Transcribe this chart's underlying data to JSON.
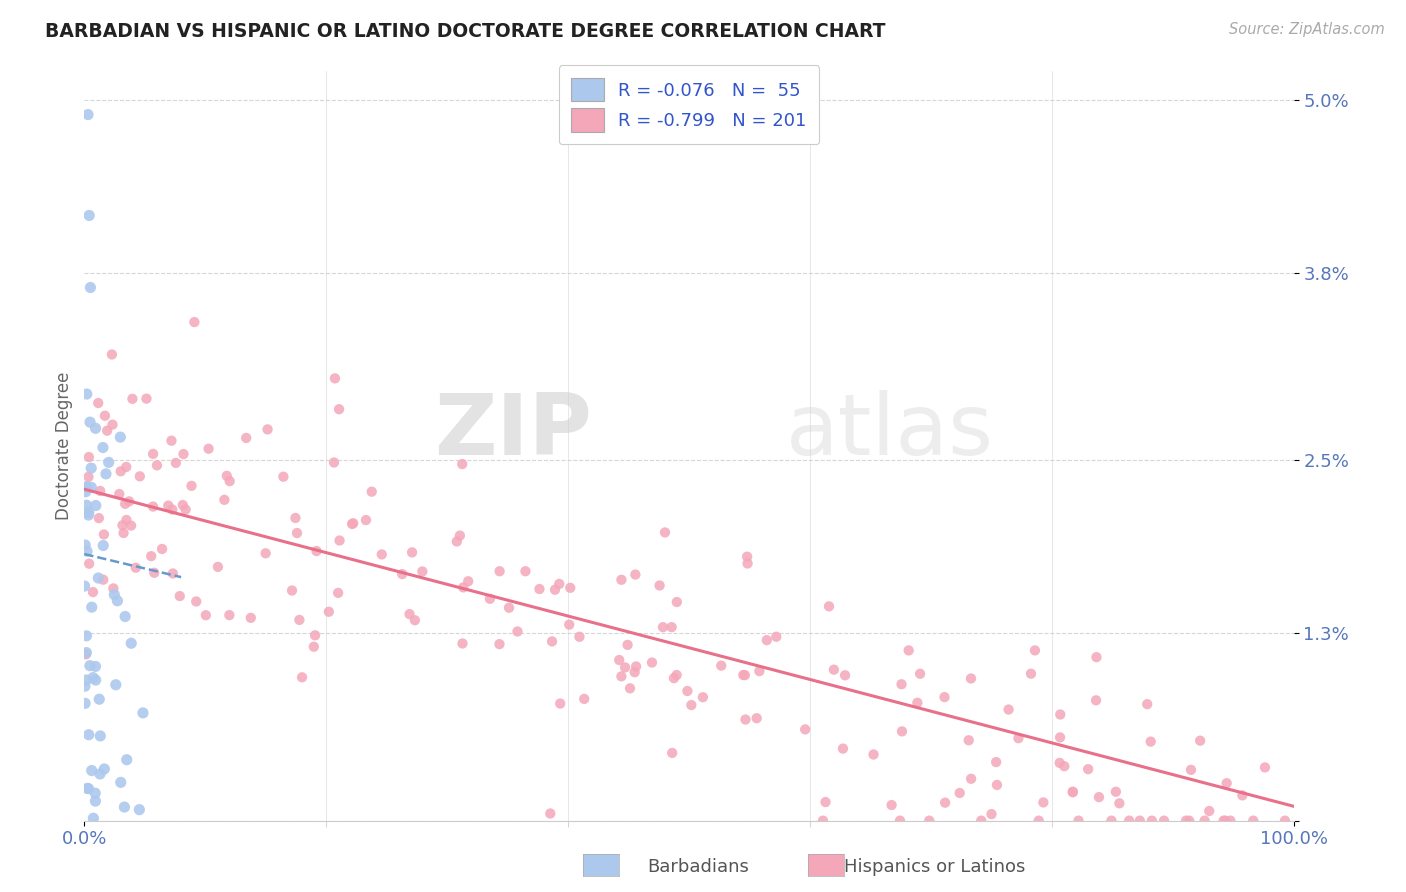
{
  "title": "BARBADIAN VS HISPANIC OR LATINO DOCTORATE DEGREE CORRELATION CHART",
  "source": "Source: ZipAtlas.com",
  "xlabel_barbadians": "Barbadians",
  "xlabel_hispanics": "Hispanics or Latinos",
  "ylabel": "Doctorate Degree",
  "r_barbadian": -0.076,
  "n_barbadian": 55,
  "r_hispanic": -0.799,
  "n_hispanic": 201,
  "color_barbadian": "#adc8ed",
  "color_hispanic": "#f4a7b9",
  "line_color_barbadian": "#6699cc",
  "line_color_hispanic": "#e8708a",
  "watermark_zip": "ZIP",
  "watermark_atlas": "atlas",
  "ytick_labels": [
    "",
    "1.3%",
    "2.5%",
    "3.8%",
    "5.0%"
  ],
  "ytick_values": [
    0.0,
    1.3,
    2.5,
    3.8,
    5.0
  ],
  "xlim": [
    0.0,
    100.0
  ],
  "ylim": [
    0.0,
    5.2
  ],
  "title_color": "#222222",
  "tick_label_color": "#5577bb",
  "background_color": "#ffffff",
  "grid_color": "#cccccc"
}
